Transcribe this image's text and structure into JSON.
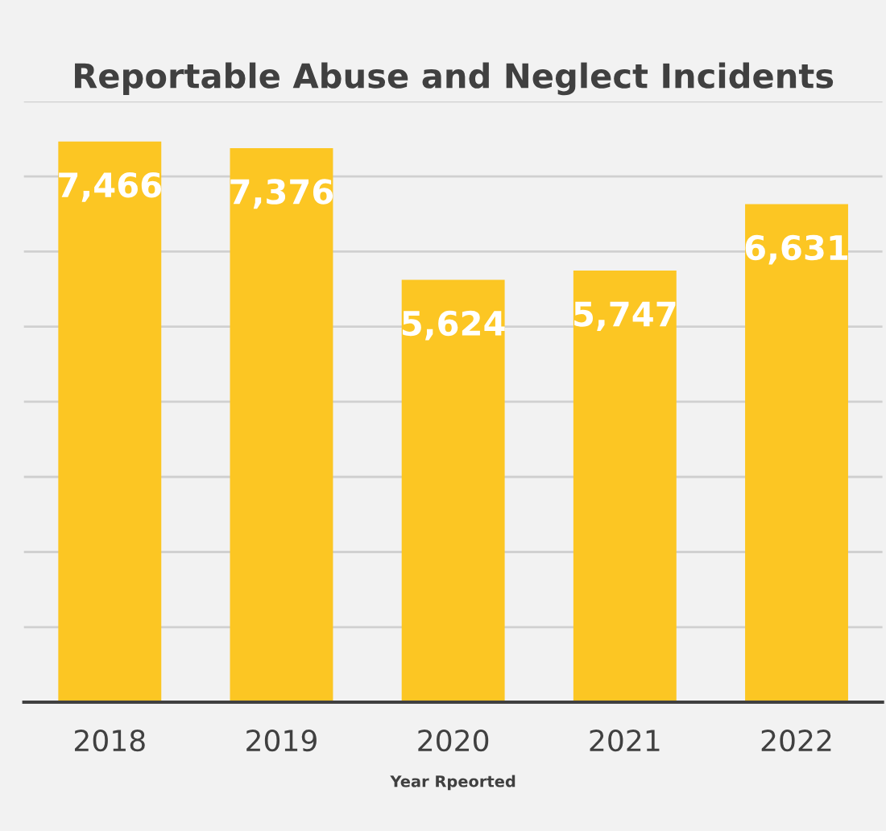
{
  "chart_data": {
    "type": "bar",
    "title": "Reportable Abuse and Neglect Incidents",
    "xlabel": "Year Rpeorted",
    "categories": [
      "2018",
      "2019",
      "2020",
      "2021",
      "2022"
    ],
    "values": [
      7466,
      7376,
      5624,
      5747,
      6631
    ],
    "value_labels": [
      "7,466",
      "7,376",
      "5,624",
      "5,747",
      "6,631"
    ],
    "color": "#fcc623",
    "ylim": [
      0,
      8000
    ],
    "yticks": [
      {
        "value": 0,
        "label": null
      },
      {
        "value": 1000,
        "label": null
      },
      {
        "value": 2000,
        "label": null
      },
      {
        "value": 3000,
        "label": null
      },
      {
        "value": 4000,
        "label": null
      },
      {
        "value": 5000,
        "label": null
      },
      {
        "value": 6000,
        "label": null
      },
      {
        "value": 7000,
        "label": null
      },
      {
        "value": 8000,
        "label": null
      }
    ],
    "tick_labels": "x",
    "grid": "y",
    "legend": false
  }
}
